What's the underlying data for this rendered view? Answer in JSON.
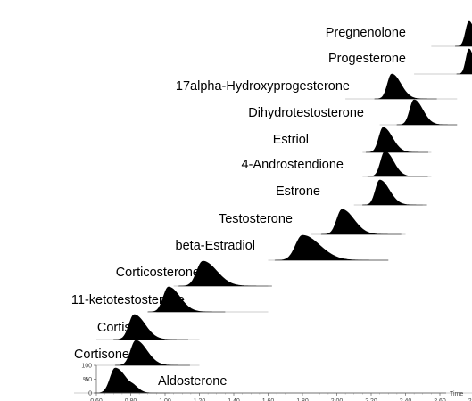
{
  "chart_data": {
    "type": "line",
    "xlabel": "Time",
    "xlim": [
      0.47,
      3.03
    ],
    "x_ticks": [
      "0.60",
      "0.80",
      "1.00",
      "1.20",
      "1.40",
      "1.60",
      "1.80",
      "2.00",
      "2.20",
      "2.40",
      "2.60",
      "2.80",
      "3.00"
    ],
    "y_axis": {
      "label": "%",
      "ticks": [
        "0",
        "50",
        "100"
      ]
    },
    "series": [
      {
        "name": "Pregnenolone",
        "peak_rt": 2.77,
        "width": 0.02,
        "tail": 0.5,
        "window": [
          2.55,
          2.95
        ]
      },
      {
        "name": "Progesterone",
        "peak_rt": 2.77,
        "width": 0.018,
        "tail": 0.4,
        "window": [
          2.45,
          2.95
        ]
      },
      {
        "name": "17alpha-Hydroxyprogesterone",
        "peak_rt": 2.32,
        "width": 0.025,
        "tail": 1.1,
        "window": [
          2.05,
          2.7
        ]
      },
      {
        "name": "Dihydrotestosterone",
        "peak_rt": 2.45,
        "width": 0.025,
        "tail": 1.0,
        "window": [
          2.25,
          2.7
        ]
      },
      {
        "name": "Estriol",
        "peak_rt": 2.27,
        "width": 0.025,
        "tail": 1.1,
        "window": [
          2.15,
          2.55
        ]
      },
      {
        "name": "4-Androstendione",
        "peak_rt": 2.28,
        "width": 0.025,
        "tail": 1.0,
        "window": [
          2.15,
          2.55
        ]
      },
      {
        "name": "Estrone",
        "peak_rt": 2.25,
        "width": 0.025,
        "tail": 1.2,
        "window": [
          2.1,
          2.5
        ]
      },
      {
        "name": "Testosterone",
        "peak_rt": 2.03,
        "width": 0.03,
        "tail": 1.3,
        "window": [
          1.85,
          2.4
        ]
      },
      {
        "name": "beta-Estradiol",
        "peak_rt": 1.8,
        "width": 0.04,
        "tail": 1.5,
        "window": [
          1.6,
          2.3
        ]
      },
      {
        "name": "Corticosterone",
        "peak_rt": 1.22,
        "width": 0.035,
        "tail": 1.3,
        "window": [
          1.05,
          1.6
        ]
      },
      {
        "name": "11-ketotestosterone",
        "peak_rt": 1.02,
        "width": 0.03,
        "tail": 1.2,
        "window": [
          0.95,
          1.6
        ]
      },
      {
        "name": "Cortisol",
        "peak_rt": 0.82,
        "width": 0.03,
        "tail": 1.1,
        "window": [
          0.6,
          1.2
        ]
      },
      {
        "name": "Cortisone",
        "peak_rt": 0.83,
        "width": 0.03,
        "tail": 1.1,
        "window": [
          0.6,
          1.2
        ]
      },
      {
        "name": "Aldosterone",
        "peak_rt": 0.71,
        "width": 0.03,
        "tail": 1.1,
        "window": [
          0.47,
          3.03
        ],
        "secondary_peak_rt": 0.82
      }
    ]
  }
}
